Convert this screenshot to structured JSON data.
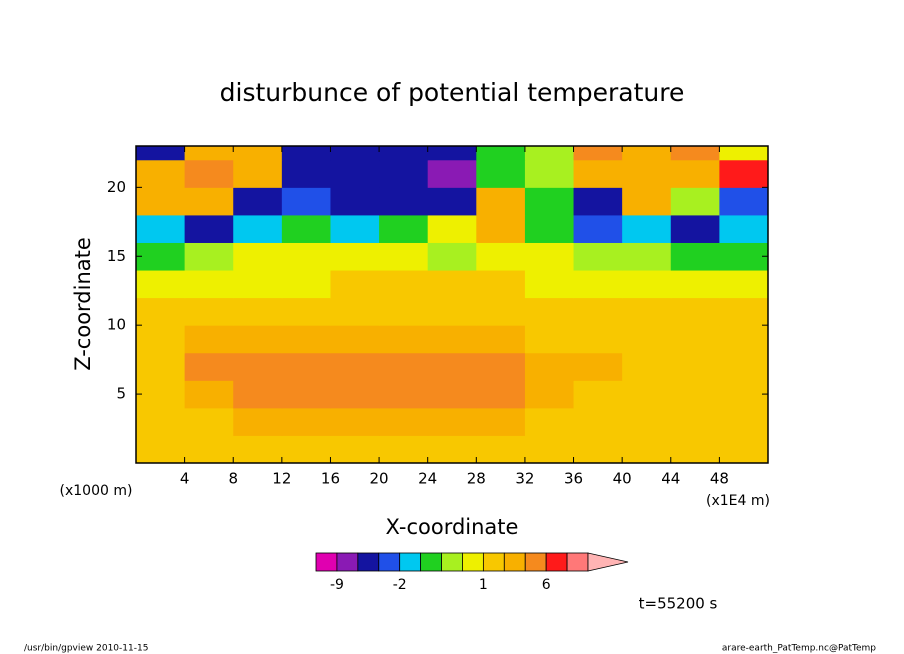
{
  "chart_data": {
    "type": "contour",
    "title": "disturbunce of potential temperature",
    "xlabel": "X-coordinate",
    "ylabel": "Z-coordinate",
    "x_unit": "(x1E4 m)",
    "y_unit": "(x1000 m)",
    "time_label": "t=55200 s",
    "footer_left": "/usr/bin/gpview   2010-11-15",
    "footer_right": "arare-earth_PatTemp.nc@PatTemp",
    "xlim": [
      0,
      52
    ],
    "ylim": [
      0,
      23
    ],
    "xticks": [
      4,
      8,
      12,
      16,
      20,
      24,
      28,
      32,
      36,
      40,
      44,
      48
    ],
    "yticks": [
      5,
      10,
      15,
      20
    ],
    "x": [
      2,
      6,
      10,
      14,
      18,
      22,
      26,
      30,
      34,
      38,
      42,
      46,
      50
    ],
    "y": [
      1,
      3,
      5,
      7,
      9,
      11,
      13,
      15,
      17,
      19,
      21,
      23
    ],
    "z": [
      [
        1.5,
        1.5,
        1.5,
        1.5,
        1.5,
        1.5,
        1.5,
        1.5,
        1.5,
        1.5,
        1.5,
        1.5,
        1.5
      ],
      [
        1.5,
        1.5,
        2.5,
        2.5,
        2.5,
        2.5,
        2.5,
        2.5,
        1.5,
        1.5,
        1.5,
        1.5,
        1.5
      ],
      [
        1.5,
        2.5,
        4,
        4,
        4,
        4.5,
        4,
        4,
        2.5,
        1.5,
        1.5,
        1.5,
        1.5
      ],
      [
        1.5,
        4,
        4.5,
        4,
        4,
        4.5,
        4,
        4,
        2.5,
        2.5,
        1.5,
        1.5,
        1.5
      ],
      [
        1.5,
        2.5,
        2.5,
        2.5,
        2.5,
        2.5,
        2.5,
        2.5,
        1.5,
        1.5,
        1.5,
        1.5,
        1.5
      ],
      [
        1.5,
        1.5,
        1.5,
        1.5,
        1.5,
        1.5,
        1.5,
        1.5,
        1.5,
        1.5,
        1.5,
        1.5,
        1.5
      ],
      [
        0.7,
        0.7,
        0.7,
        0.7,
        1.5,
        1.5,
        1.5,
        1.5,
        0.7,
        0.7,
        0.7,
        0.7,
        0.7
      ],
      [
        -0.5,
        0.2,
        0.7,
        0.7,
        0.7,
        0.7,
        0.2,
        0.7,
        0.7,
        0.2,
        0.2,
        -0.5,
        -0.5
      ],
      [
        -1.5,
        -4,
        -1.5,
        -0.5,
        -1.5,
        -0.5,
        0.7,
        2.5,
        -0.5,
        -2.5,
        -1.5,
        -4,
        -1.5
      ],
      [
        2.5,
        2.5,
        -4,
        -2.5,
        -4,
        -4,
        -4,
        2.5,
        -0.5,
        -4,
        2.5,
        0.2,
        -2.5
      ],
      [
        2.5,
        4,
        2.5,
        -4,
        -4,
        -4,
        -7,
        -0.5,
        0.2,
        2.5,
        2.5,
        2.5,
        7
      ],
      [
        -4,
        2.5,
        2.5,
        -4,
        -4,
        -4,
        -4,
        -0.5,
        0.2,
        4,
        2.5,
        4,
        0.7
      ]
    ],
    "colorbar": {
      "levels": [
        -9,
        -6,
        -3,
        -2,
        -1,
        0,
        0.5,
        1,
        2,
        3,
        6,
        9,
        12
      ],
      "colors": [
        "#e000b0",
        "#8a1ab4",
        "#1414a0",
        "#2050e8",
        "#00c8f0",
        "#20d020",
        "#a8f020",
        "#eef000",
        "#f8c800",
        "#f8b000",
        "#f58a1e",
        "#ff1a1a",
        "#ff7878",
        "#ffb4b4"
      ],
      "ticks": [
        -9,
        -2,
        1,
        6
      ]
    }
  }
}
